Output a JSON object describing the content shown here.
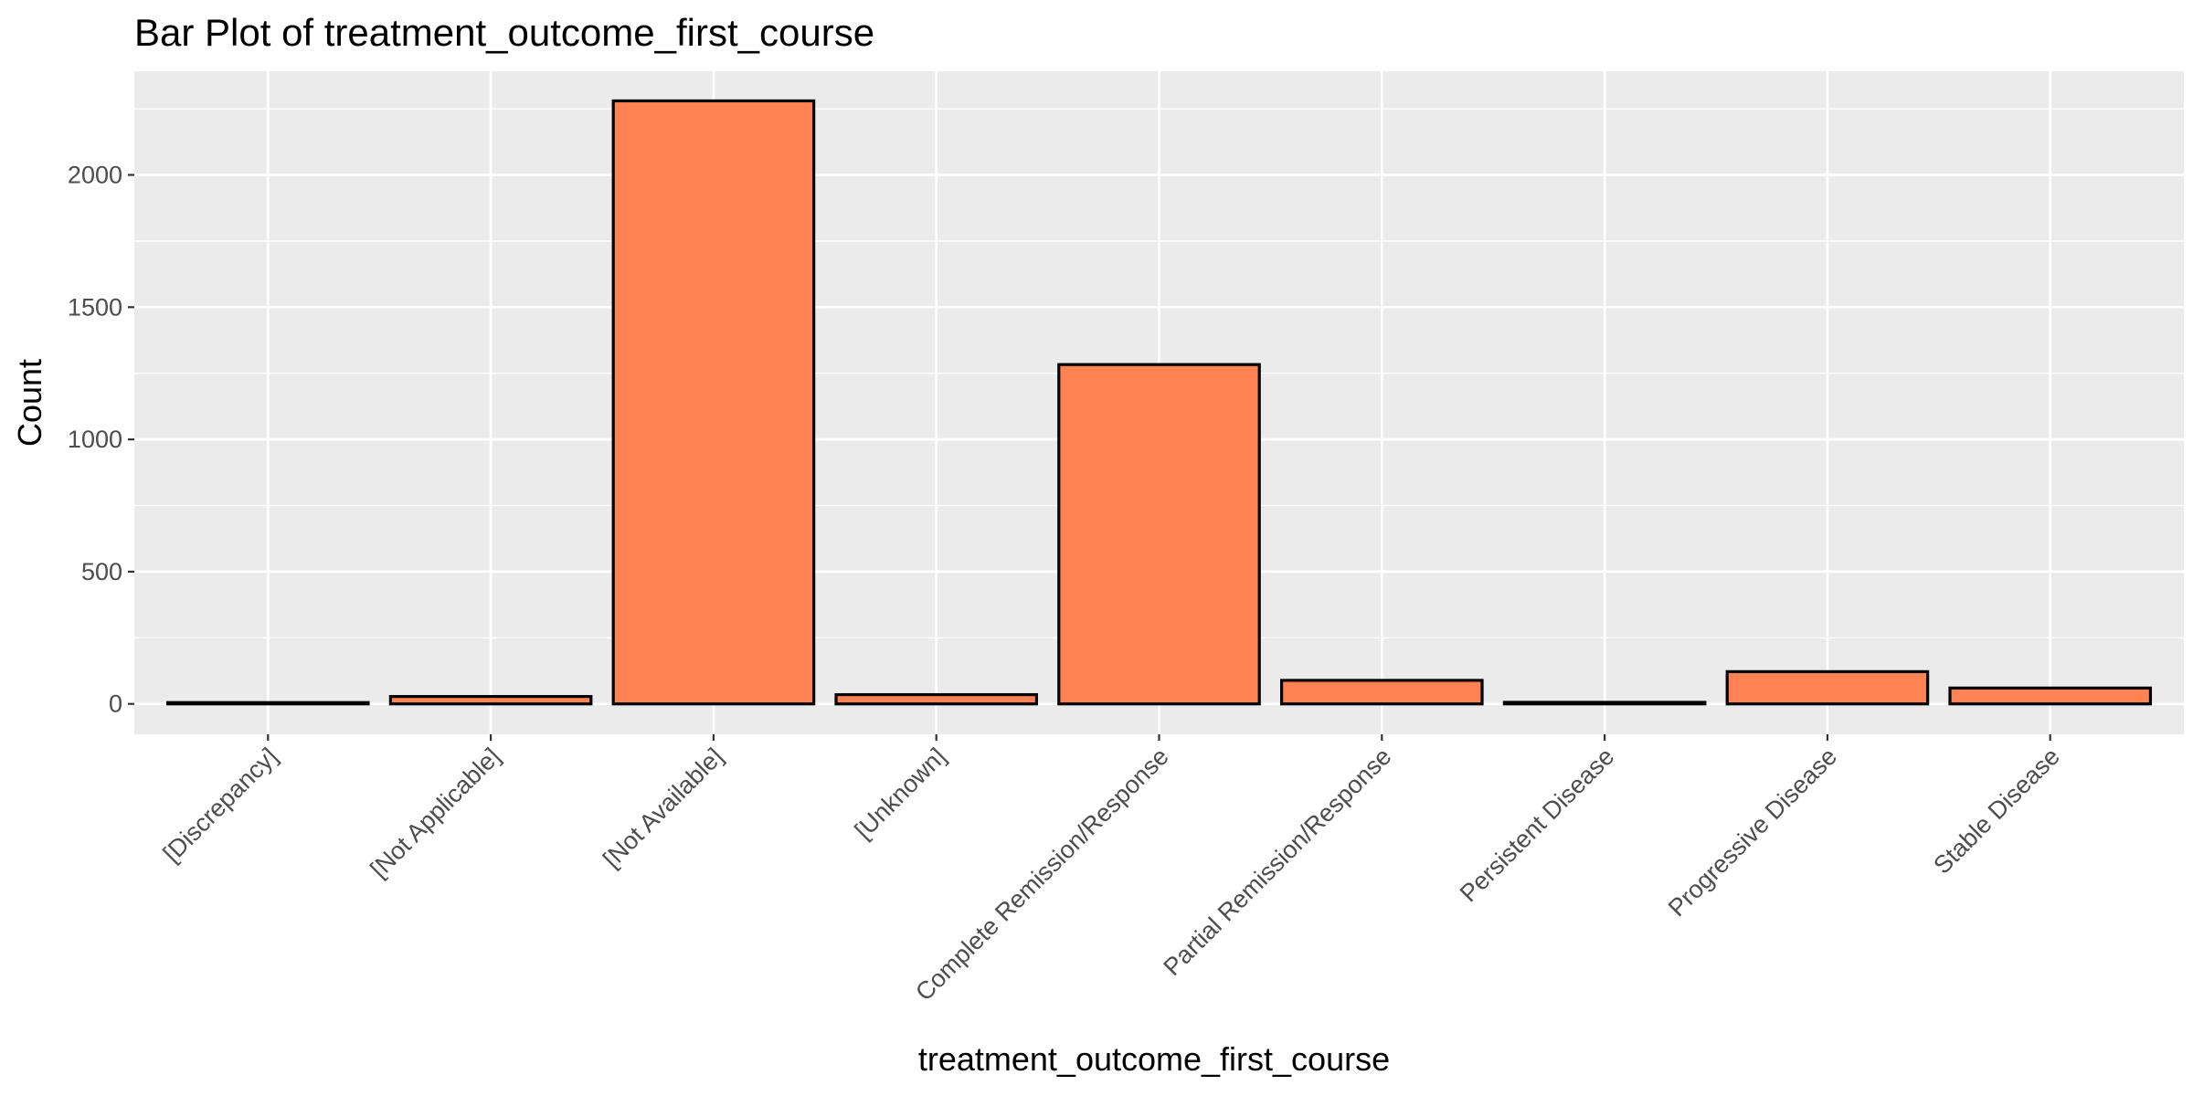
{
  "chart_data": {
    "type": "bar",
    "title": "Bar Plot of treatment_outcome_first_course",
    "xlabel": "treatment_outcome_first_course",
    "ylabel": "Count",
    "categories": [
      "[Discrepancy]",
      "[Not Applicable]",
      "[Not Available]",
      "[Unknown]",
      "Complete Remission/Response",
      "Partial Remission/Response",
      "Persistent Disease",
      "Progressive Disease",
      "Stable Disease"
    ],
    "values": [
      5,
      28,
      2280,
      35,
      1283,
      89,
      6,
      122,
      60
    ],
    "ylim": [
      -115,
      2392
    ],
    "yticks": [
      0,
      500,
      1000,
      1500,
      2000
    ],
    "grid": true,
    "legend": "none",
    "colors": {
      "bar_fill": "#FF8252",
      "bar_stroke": "#000000",
      "panel_bg": "#EBEBEB",
      "grid": "#FFFFFF",
      "tick_text": "#4D4D4D"
    }
  }
}
